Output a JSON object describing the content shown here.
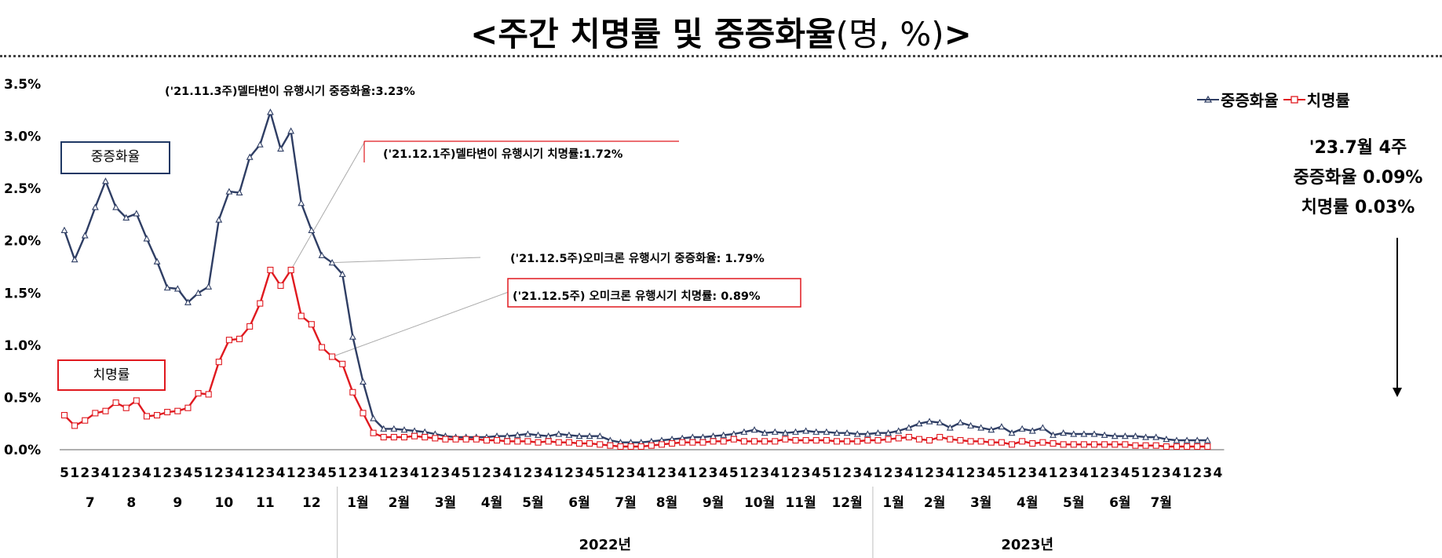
{
  "title": {
    "main": "<주간 치명률 및 중증화율",
    "unit": "(명, %)",
    "end": ">"
  },
  "labels": {
    "severe": "중증화율",
    "fatal": "치명률"
  },
  "legend": [
    {
      "name": "중증화율",
      "color": "#2f3e64"
    },
    {
      "name": "치명률",
      "color": "#e0191f"
    }
  ],
  "callout": {
    "week": "'23.7월 4주",
    "severe": "중증화율 0.09%",
    "fatal": "치명률 0.03%"
  },
  "chart_data": {
    "type": "line",
    "ylim": [
      0,
      3.5
    ],
    "y_ticks": [
      "0.0%",
      "0.5%",
      "1.0%",
      "1.5%",
      "2.0%",
      "2.5%",
      "3.0%",
      "3.5%"
    ],
    "week_labels": [
      "5",
      "1",
      "2",
      "3",
      "4",
      "1",
      "2",
      "3",
      "4",
      "1",
      "2",
      "3",
      "4",
      "5",
      "1",
      "2",
      "3",
      "4",
      "1",
      "2",
      "3",
      "4",
      "1",
      "2",
      "3",
      "4",
      "5",
      "1",
      "2",
      "3",
      "4",
      "1",
      "2",
      "3",
      "4",
      "1",
      "2",
      "3",
      "4",
      "5",
      "1",
      "2",
      "3",
      "4",
      "1",
      "2",
      "3",
      "4",
      "1",
      "2",
      "3",
      "4",
      "5",
      "1",
      "2",
      "3",
      "4",
      "1",
      "2",
      "3",
      "4",
      "1",
      "2",
      "3",
      "4",
      "5",
      "1",
      "2",
      "3",
      "4",
      "1",
      "2",
      "3",
      "4",
      "5",
      "1",
      "2",
      "3",
      "4",
      "1",
      "2",
      "3",
      "4",
      "1",
      "2",
      "3",
      "4",
      "1",
      "2",
      "3",
      "4",
      "5",
      "1",
      "2",
      "3",
      "4",
      "1",
      "2",
      "3",
      "4",
      "1",
      "2",
      "3",
      "4",
      "5",
      "1",
      "2",
      "3",
      "4",
      "1",
      "2",
      "3",
      "4"
    ],
    "months": [
      {
        "label": "7",
        "start": 1,
        "count": 4
      },
      {
        "label": "8",
        "start": 5,
        "count": 4
      },
      {
        "label": "9",
        "start": 9,
        "count": 5
      },
      {
        "label": "10",
        "start": 14,
        "count": 4
      },
      {
        "label": "11",
        "start": 18,
        "count": 4
      },
      {
        "label": "12",
        "start": 22,
        "count": 5
      },
      {
        "label": "1월",
        "start": 27,
        "count": 4
      },
      {
        "label": "2월",
        "start": 31,
        "count": 4
      },
      {
        "label": "3월",
        "start": 35,
        "count": 5
      },
      {
        "label": "4월",
        "start": 40,
        "count": 4
      },
      {
        "label": "5월",
        "start": 44,
        "count": 4
      },
      {
        "label": "6월",
        "start": 48,
        "count": 5
      },
      {
        "label": "7월",
        "start": 53,
        "count": 4
      },
      {
        "label": "8월",
        "start": 57,
        "count": 4
      },
      {
        "label": "9월",
        "start": 61,
        "count": 5
      },
      {
        "label": "10월",
        "start": 66,
        "count": 4
      },
      {
        "label": "11월",
        "start": 70,
        "count": 4
      },
      {
        "label": "12월",
        "start": 74,
        "count": 5
      },
      {
        "label": "1월",
        "start": 79,
        "count": 4
      },
      {
        "label": "2월",
        "start": 83,
        "count": 4
      },
      {
        "label": "3월",
        "start": 87,
        "count": 5
      },
      {
        "label": "4월",
        "start": 92,
        "count": 4
      },
      {
        "label": "5월",
        "start": 96,
        "count": 5
      },
      {
        "label": "6월",
        "start": 101,
        "count": 4
      },
      {
        "label": "7월",
        "start": 105,
        "count": 4
      }
    ],
    "years": [
      {
        "label": "2022년",
        "start": 27,
        "count": 52
      },
      {
        "label": "2023년",
        "start": 79,
        "count": 30
      }
    ],
    "series": [
      {
        "name": "중증화율",
        "color": "#2f3e64",
        "values": [
          2.1,
          1.82,
          2.05,
          2.32,
          2.57,
          2.32,
          2.22,
          2.26,
          2.02,
          1.8,
          1.55,
          1.54,
          1.41,
          1.5,
          1.56,
          2.2,
          2.47,
          2.46,
          2.8,
          2.92,
          3.23,
          2.88,
          3.05,
          2.36,
          2.1,
          1.86,
          1.79,
          1.68,
          1.08,
          0.65,
          0.3,
          0.2,
          0.2,
          0.19,
          0.18,
          0.17,
          0.15,
          0.13,
          0.12,
          0.12,
          0.12,
          0.12,
          0.13,
          0.13,
          0.14,
          0.15,
          0.14,
          0.13,
          0.15,
          0.14,
          0.13,
          0.13,
          0.13,
          0.09,
          0.07,
          0.07,
          0.07,
          0.08,
          0.09,
          0.1,
          0.11,
          0.12,
          0.12,
          0.13,
          0.14,
          0.15,
          0.17,
          0.19,
          0.16,
          0.17,
          0.16,
          0.17,
          0.18,
          0.17,
          0.17,
          0.16,
          0.16,
          0.15,
          0.15,
          0.16,
          0.16,
          0.18,
          0.21,
          0.25,
          0.27,
          0.26,
          0.21,
          0.26,
          0.23,
          0.21,
          0.19,
          0.22,
          0.16,
          0.2,
          0.18,
          0.21,
          0.14,
          0.16,
          0.15,
          0.15,
          0.15,
          0.14,
          0.13,
          0.13,
          0.13,
          0.12,
          0.12,
          0.1,
          0.09,
          0.09,
          0.09,
          0.09
        ]
      },
      {
        "name": "치명률",
        "color": "#e0191f",
        "values": [
          0.33,
          0.23,
          0.28,
          0.35,
          0.37,
          0.45,
          0.4,
          0.47,
          0.32,
          0.33,
          0.36,
          0.37,
          0.4,
          0.54,
          0.53,
          0.84,
          1.05,
          1.06,
          1.18,
          1.4,
          1.72,
          1.57,
          1.72,
          1.28,
          1.2,
          0.98,
          0.89,
          0.82,
          0.55,
          0.35,
          0.16,
          0.12,
          0.12,
          0.12,
          0.13,
          0.12,
          0.11,
          0.1,
          0.1,
          0.1,
          0.1,
          0.09,
          0.09,
          0.08,
          0.08,
          0.08,
          0.07,
          0.08,
          0.07,
          0.07,
          0.06,
          0.06,
          0.05,
          0.04,
          0.03,
          0.03,
          0.03,
          0.04,
          0.05,
          0.06,
          0.07,
          0.07,
          0.07,
          0.08,
          0.08,
          0.1,
          0.08,
          0.08,
          0.08,
          0.08,
          0.1,
          0.09,
          0.09,
          0.09,
          0.09,
          0.08,
          0.08,
          0.08,
          0.09,
          0.09,
          0.1,
          0.11,
          0.12,
          0.1,
          0.09,
          0.12,
          0.1,
          0.09,
          0.08,
          0.08,
          0.07,
          0.07,
          0.05,
          0.08,
          0.06,
          0.07,
          0.06,
          0.05,
          0.05,
          0.05,
          0.05,
          0.05,
          0.05,
          0.05,
          0.04,
          0.04,
          0.04,
          0.03,
          0.03,
          0.03,
          0.03,
          0.03
        ]
      }
    ],
    "annotations": [
      {
        "text": "('21.11.3주)델타변이 유행시기 중증화율:3.23%",
        "series": 0,
        "index": 20
      },
      {
        "text": "('21.12.1주)델타변이 유행시기 치명률:1.72%",
        "series": 1,
        "index": 22
      },
      {
        "text": "('21.12.5주)오미크론 유행시기 중증화율: 1.79%",
        "series": 0,
        "index": 26
      },
      {
        "text": "('21.12.5주) 오미크론 유행시기 치명률: 0.89%",
        "series": 1,
        "index": 26
      }
    ]
  }
}
